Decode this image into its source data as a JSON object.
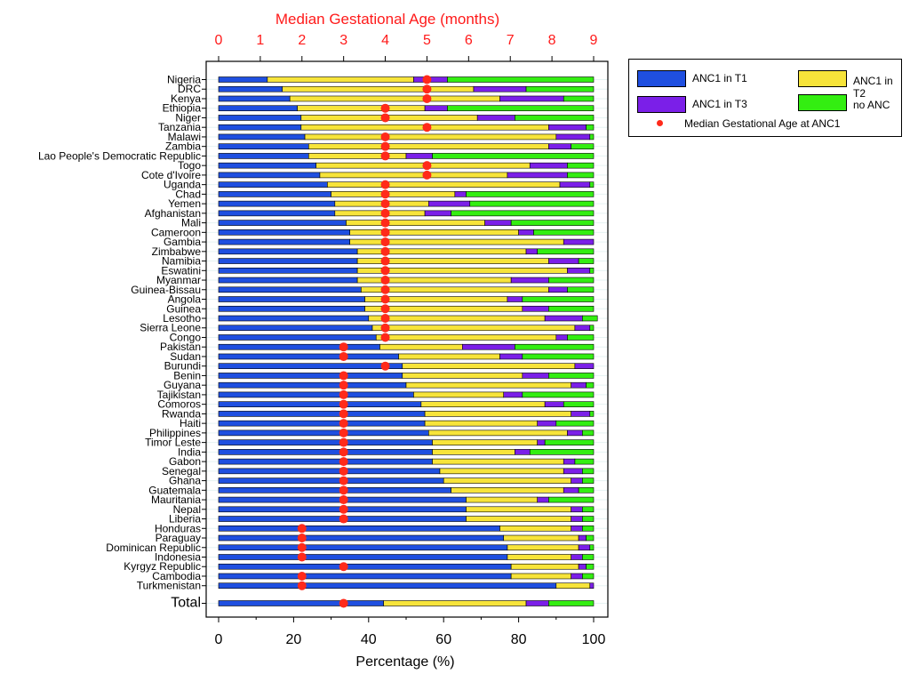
{
  "chart_data": {
    "type": "bar",
    "orientation": "horizontal",
    "stacked": true,
    "top_axis_title": "Median Gestational Age (months)",
    "top_axis_ticks": [
      "0",
      "1",
      "2",
      "3",
      "4",
      "5",
      "6",
      "7",
      "8",
      "9"
    ],
    "xlabel": "Percentage (%)",
    "x_ticks": [
      "0",
      "20",
      "40",
      "60",
      "80",
      "100"
    ],
    "xlim": [
      0,
      100
    ],
    "top_axis_range": [
      0,
      9
    ],
    "legend_position": "right",
    "colors": {
      "t1": "#1f4fe0",
      "t2": "#f7e43a",
      "t3": "#7b1fe8",
      "none": "#33ee11",
      "median": "#ff2a1a",
      "top_axis": "#ff1a1a"
    },
    "categories": [
      "Nigeria",
      "DRC",
      "Kenya",
      "Ethiopia",
      "Niger",
      "Tanzania",
      "Malawi",
      "Zambia",
      "Lao People's Democratic Republic",
      "Togo",
      "Cote d'Ivoire",
      "Uganda",
      "Chad",
      "Yemen",
      "Afghanistan",
      "Mali",
      "Cameroon",
      "Gambia",
      "Zimbabwe",
      "Namibia",
      "Eswatini",
      "Myanmar",
      "Guinea-Bissau",
      "Angola",
      "Guinea",
      "Lesotho",
      "Sierra Leone",
      "Congo",
      "Pakistan",
      "Sudan",
      "Burundi",
      "Benin",
      "Guyana",
      "Tajikistan",
      "Comoros",
      "Rwanda",
      "Haiti",
      "Philippines",
      "Timor Leste",
      "India",
      "Gabon",
      "Senegal",
      "Ghana",
      "Guatemala",
      "Mauritania",
      "Nepal",
      "Liberia",
      "Honduras",
      "Paraguay",
      "Dominican Republic",
      "Indonesia",
      "Kyrgyz Republic",
      "Cambodia",
      "Turkmenistan",
      "Total"
    ],
    "series": [
      {
        "name": "ANC1 in T1",
        "values": [
          13,
          17,
          19,
          21,
          22,
          22,
          23,
          24,
          24,
          26,
          27,
          29,
          30,
          31,
          31,
          34,
          35,
          35,
          37,
          37,
          37,
          37,
          38,
          39,
          39,
          40,
          41,
          42,
          43,
          48,
          49,
          49,
          50,
          52,
          54,
          55,
          55,
          56,
          57,
          57,
          57,
          59,
          60,
          62,
          66,
          66,
          66,
          75,
          76,
          77,
          77,
          78,
          78,
          90,
          44
        ]
      },
      {
        "name": "ANC1 in T2",
        "values": [
          39,
          51,
          56,
          34,
          47,
          66,
          67,
          64,
          26,
          57,
          50,
          62,
          33,
          25,
          24,
          37,
          45,
          57,
          45,
          51,
          56,
          41,
          50,
          38,
          42,
          47,
          54,
          48,
          22,
          27,
          46,
          32,
          44,
          24,
          33,
          39,
          30,
          37,
          28,
          22,
          35,
          33,
          34,
          30,
          19,
          28,
          28,
          19,
          20,
          19,
          17,
          18,
          16,
          9,
          38
        ]
      },
      {
        "name": "ANC1 in T3",
        "values": [
          9,
          14,
          17,
          6,
          10,
          10,
          9,
          6,
          7,
          10,
          16,
          8,
          3,
          11,
          7,
          7,
          4,
          8,
          3,
          8,
          6,
          10,
          5,
          4,
          7,
          10,
          4,
          3,
          14,
          6,
          5,
          7,
          4,
          5,
          5,
          5,
          5,
          4,
          2,
          4,
          3,
          5,
          3,
          4,
          3,
          3,
          3,
          3,
          2,
          3,
          3,
          2,
          3,
          1,
          6
        ]
      },
      {
        "name": "no ANC",
        "values": [
          39,
          18,
          8,
          39,
          21,
          2,
          1,
          6,
          43,
          7,
          7,
          1,
          34,
          33,
          38,
          22,
          16,
          0,
          15,
          4,
          1,
          12,
          7,
          19,
          12,
          4,
          1,
          7,
          21,
          19,
          0,
          12,
          2,
          19,
          8,
          1,
          10,
          3,
          13,
          17,
          5,
          3,
          3,
          4,
          12,
          3,
          3,
          3,
          2,
          1,
          3,
          2,
          3,
          0,
          12
        ]
      }
    ],
    "median_gestational_age_months": [
      5,
      5,
      5,
      4,
      4,
      5,
      4,
      4,
      4,
      5,
      5,
      4,
      4,
      4,
      4,
      4,
      4,
      4,
      4,
      4,
      4,
      4,
      4,
      4,
      4,
      4,
      4,
      4,
      3,
      3,
      4,
      3,
      3,
      3,
      3,
      3,
      3,
      3,
      3,
      3,
      3,
      3,
      3,
      3,
      3,
      3,
      3,
      2,
      2,
      2,
      2,
      3,
      2,
      2,
      3
    ],
    "legend": {
      "t1": "ANC1 in T1",
      "t2": "ANC1 in T2",
      "t3": "ANC1 in T3",
      "none": "no ANC",
      "median": "Median Gestational Age at ANC1"
    }
  }
}
